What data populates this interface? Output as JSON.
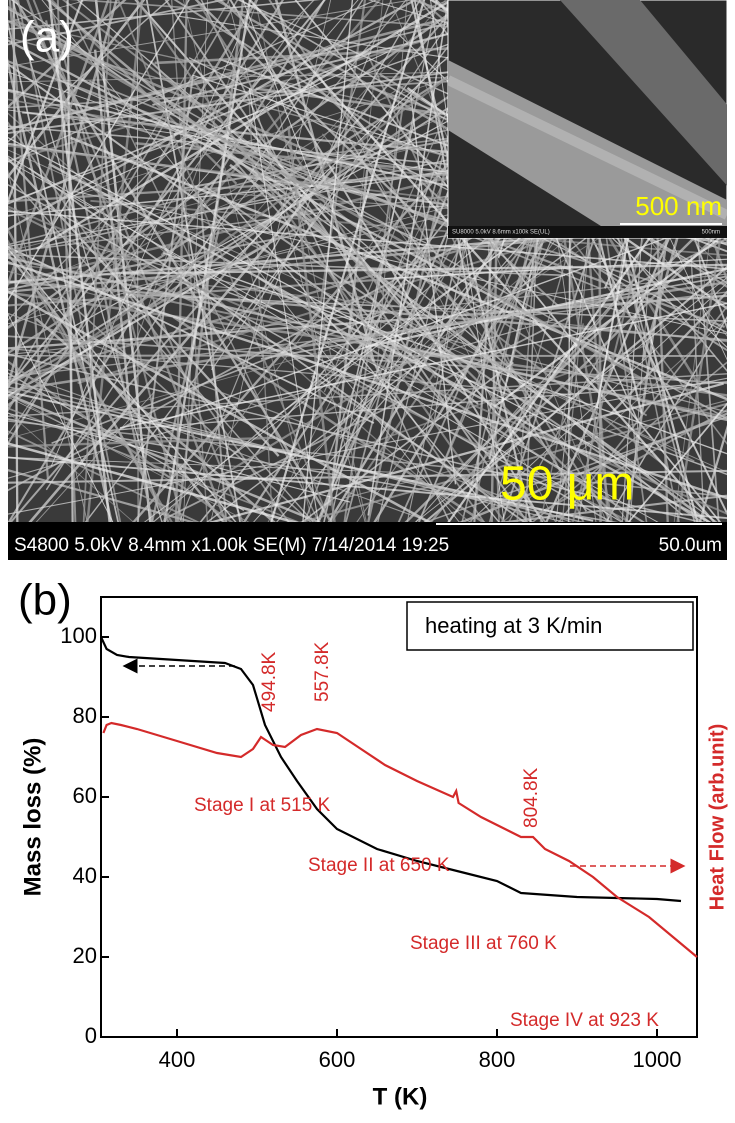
{
  "panel_a": {
    "label": "(a)",
    "inset_scale": "500 nm",
    "inset_info": "SU8000 5.0kV 8.6mm x100k SE(UL)",
    "inset_bar": "500nm",
    "scale": "50 μm",
    "info": "S4800 5.0kV 8.4mm x1.00k SE(M) 7/14/2014 19:25",
    "bar": "50.0um"
  },
  "chart_data": {
    "type": "line",
    "panel_label": "(b)",
    "x_label": "T (K)",
    "y_label": "Mass loss (%)",
    "y2_label": "Heat Flow (arb.unit)",
    "legend_text": "heating at 3 K/min",
    "annotations": [
      "494.8K",
      "557.8K",
      "804.8K",
      "Stage I at 515 K",
      "Stage II at 650 K",
      "Stage III at 760 K",
      "Stage IV at 923 K"
    ],
    "xlim": [
      305,
      1050
    ],
    "xticks": [
      400,
      600,
      800,
      1000
    ],
    "ylim": [
      0,
      110
    ],
    "yticks": [
      0,
      20,
      40,
      60,
      80,
      100
    ],
    "y2lim": [
      0,
      110
    ],
    "series": [
      {
        "color": "#000000",
        "x": [
          305,
          312,
          325,
          340,
          380,
          420,
          460,
          480,
          495,
          510,
          530,
          550,
          575,
          600,
          650,
          700,
          760,
          800,
          830,
          900,
          1000,
          1030
        ],
        "values": [
          100,
          97,
          95.5,
          95,
          94.5,
          94,
          93.5,
          92,
          88,
          78,
          70,
          64,
          57,
          52,
          47,
          44,
          41,
          39,
          36,
          35,
          34.5,
          34
        ]
      },
      {
        "color": "#d42a2a",
        "axis": "y2",
        "x": [
          308,
          312,
          318,
          330,
          350,
          400,
          450,
          480,
          495,
          505,
          520,
          535,
          555,
          575,
          600,
          630,
          660,
          700,
          745,
          749,
          752,
          756,
          780,
          810,
          830,
          845,
          860,
          890,
          920,
          950,
          990,
          1050
        ],
        "values": [
          76,
          78,
          78.5,
          78,
          77,
          74,
          71,
          70,
          72,
          75,
          73,
          72.5,
          75.5,
          77,
          76,
          72,
          68,
          64,
          60,
          61.5,
          58.5,
          58,
          55,
          52,
          50,
          50,
          47,
          44,
          40,
          35,
          30,
          20
        ]
      }
    ]
  }
}
